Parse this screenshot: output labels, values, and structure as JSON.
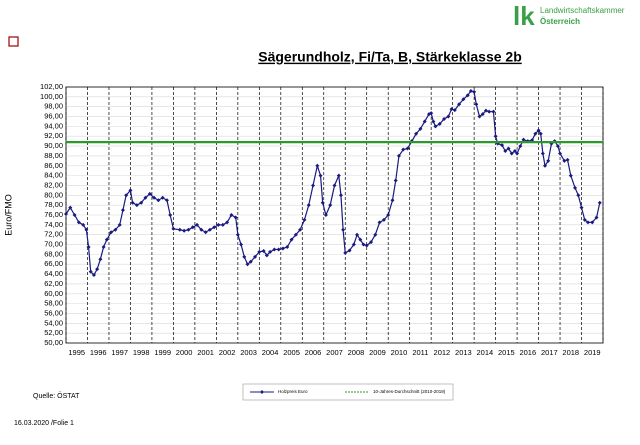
{
  "chart_data": {
    "type": "line",
    "title": "Sägerundholz, Fi/Ta, B, Stärkeklasse 2b",
    "y_label": "Euro/FMO",
    "xlim": [
      1995,
      2020
    ],
    "xticks": [
      {
        "value": 1995.5,
        "label": "1995"
      },
      {
        "value": 1996.5,
        "label": "1996"
      },
      {
        "value": 1997.5,
        "label": "1997"
      },
      {
        "value": 1998.5,
        "label": "1998"
      },
      {
        "value": 1999.5,
        "label": "1999"
      },
      {
        "value": 2000.5,
        "label": "2000"
      },
      {
        "value": 2001.5,
        "label": "2001"
      },
      {
        "value": 2002.5,
        "label": "2002"
      },
      {
        "value": 2003.5,
        "label": "2003"
      },
      {
        "value": 2004.5,
        "label": "2004"
      },
      {
        "value": 2005.5,
        "label": "2005"
      },
      {
        "value": 2006.5,
        "label": "2006"
      },
      {
        "value": 2007.5,
        "label": "2007"
      },
      {
        "value": 2008.5,
        "label": "2008"
      },
      {
        "value": 2009.5,
        "label": "2009"
      },
      {
        "value": 2010.5,
        "label": "2010"
      },
      {
        "value": 2011.5,
        "label": "2011"
      },
      {
        "value": 2012.5,
        "label": "2012"
      },
      {
        "value": 2013.5,
        "label": "2013"
      },
      {
        "value": 2014.5,
        "label": "2014"
      },
      {
        "value": 2015.5,
        "label": "2015"
      },
      {
        "value": 2016.5,
        "label": "2016"
      },
      {
        "value": 2017.5,
        "label": "2017"
      },
      {
        "value": 2018.5,
        "label": "2018"
      },
      {
        "value": 2019.5,
        "label": "2019"
      }
    ],
    "ylim": [
      50,
      102
    ],
    "yticks": [
      {
        "value": 50,
        "label": "50,00"
      },
      {
        "value": 52,
        "label": "52,00"
      },
      {
        "value": 54,
        "label": "54,00"
      },
      {
        "value": 56,
        "label": "56,00"
      },
      {
        "value": 58,
        "label": "58,00"
      },
      {
        "value": 60,
        "label": "60,00"
      },
      {
        "value": 62,
        "label": "62,00"
      },
      {
        "value": 64,
        "label": "64,00"
      },
      {
        "value": 66,
        "label": "66,00"
      },
      {
        "value": 68,
        "label": "68,00"
      },
      {
        "value": 70,
        "label": "70,00"
      },
      {
        "value": 72,
        "label": "72,00"
      },
      {
        "value": 74,
        "label": "74,00"
      },
      {
        "value": 76,
        "label": "76,00"
      },
      {
        "value": 78,
        "label": "78,00"
      },
      {
        "value": 80,
        "label": "80,00"
      },
      {
        "value": 82,
        "label": "82,00"
      },
      {
        "value": 84,
        "label": "84,00"
      },
      {
        "value": 86,
        "label": "86,00"
      },
      {
        "value": 88,
        "label": "88,00"
      },
      {
        "value": 90,
        "label": "90,00"
      },
      {
        "value": 92,
        "label": "92,00"
      },
      {
        "value": 94,
        "label": "94,00"
      },
      {
        "value": 96,
        "label": "96,00"
      },
      {
        "value": 98,
        "label": "98,00"
      },
      {
        "value": 100,
        "label": "100,00"
      },
      {
        "value": 102,
        "label": "102,00"
      }
    ],
    "grid": true,
    "series": [
      {
        "name": "Holzpreis Euro",
        "color": "#1a1a80",
        "x": [
          1995.0,
          1995.2,
          1995.4,
          1995.6,
          1995.8,
          1995.95,
          1996.05,
          1996.15,
          1996.3,
          1996.45,
          1996.6,
          1996.75,
          1996.9,
          1997.1,
          1997.3,
          1997.5,
          1997.65,
          1997.8,
          1998.0,
          1998.1,
          1998.3,
          1998.5,
          1998.7,
          1998.9,
          1999.1,
          1999.3,
          1999.5,
          1999.7,
          1999.85,
          2000.0,
          2000.3,
          2000.5,
          2000.7,
          2000.9,
          2001.1,
          2001.3,
          2001.5,
          2001.7,
          2001.9,
          2002.1,
          2002.3,
          2002.5,
          2002.7,
          2002.9,
          2003.0,
          2003.15,
          2003.3,
          2003.45,
          2003.6,
          2003.8,
          2004.0,
          2004.2,
          2004.35,
          2004.5,
          2004.7,
          2004.9,
          2005.1,
          2005.3,
          2005.5,
          2005.7,
          2005.9,
          2006.1,
          2006.3,
          2006.5,
          2006.7,
          2006.85,
          2006.95,
          2007.1,
          2007.3,
          2007.5,
          2007.7,
          2007.8,
          2007.9,
          2008.0,
          2008.2,
          2008.4,
          2008.55,
          2008.7,
          2008.85,
          2009.0,
          2009.2,
          2009.4,
          2009.6,
          2009.8,
          2010.0,
          2010.2,
          2010.35,
          2010.5,
          2010.7,
          2010.9,
          2011.1,
          2011.3,
          2011.5,
          2011.7,
          2011.9,
          2012.0,
          2012.1,
          2012.2,
          2012.4,
          2012.6,
          2012.8,
          2012.95,
          2013.1,
          2013.3,
          2013.5,
          2013.7,
          2013.85,
          2014.0,
          2014.1,
          2014.25,
          2014.4,
          2014.55,
          2014.7,
          2014.9,
          2015.0,
          2015.1,
          2015.3,
          2015.45,
          2015.6,
          2015.75,
          2015.9,
          2016.0,
          2016.15,
          2016.3,
          2016.5,
          2016.7,
          2016.85,
          2017.0,
          2017.1,
          2017.2,
          2017.3,
          2017.45,
          2017.6,
          2017.75,
          2017.9,
          2018.0,
          2018.2,
          2018.35,
          2018.5,
          2018.7,
          2018.85,
          2019.0,
          2019.15,
          2019.3,
          2019.5,
          2019.7,
          2019.85
        ],
        "values": [
          76.2,
          77.5,
          76,
          74.5,
          74,
          73,
          69.5,
          64.5,
          63.8,
          65,
          67,
          69.5,
          71,
          72.5,
          73,
          74,
          77,
          80,
          81,
          78.5,
          78,
          78.5,
          79.5,
          80.3,
          79.5,
          79,
          79.5,
          79,
          76,
          73.2,
          73,
          72.8,
          73,
          73.5,
          74,
          73,
          72.5,
          73,
          73.5,
          74,
          74,
          74.5,
          76,
          75.5,
          72,
          70,
          67.5,
          66,
          66.5,
          67.5,
          68.5,
          68.7,
          67.8,
          68.5,
          69,
          69,
          69.2,
          69.5,
          71,
          72,
          73,
          75,
          78,
          82,
          86,
          84,
          78.5,
          76,
          78,
          82,
          84,
          80,
          73,
          68.3,
          68.8,
          70,
          72,
          71,
          70,
          69.8,
          70.5,
          72,
          74.5,
          75,
          76,
          79,
          83,
          88,
          89.3,
          89.5,
          91,
          92.5,
          93.5,
          95,
          96.5,
          96.7,
          95,
          94,
          94.5,
          95.5,
          96,
          97.5,
          97.3,
          98.5,
          99.5,
          100.3,
          101.2,
          101,
          98.5,
          96,
          96.5,
          97.2,
          97,
          97,
          92,
          90.5,
          90.2,
          89,
          89.5,
          88.5,
          89,
          88.5,
          90,
          91.3,
          91,
          91.2,
          92.5,
          93.2,
          92.5,
          88.5,
          86,
          87,
          90.5,
          91,
          90,
          88.5,
          87,
          87.2,
          84,
          81.5,
          80,
          77.5,
          75,
          74.5,
          74.5,
          75.5,
          78.5
        ]
      },
      {
        "name": "10-Jahres-Durchschnitt (2010-2019)",
        "color": "#2a9a2a",
        "x": [
          1995,
          2020
        ],
        "values": [
          90.8,
          90.8
        ]
      }
    ]
  },
  "source": "Quelle: ÖSTAT",
  "footer": "16.03.2020 /Folie 1",
  "logo": {
    "mark": "lk",
    "line1": "Landwirtschaftskammer",
    "line2": "Österreich"
  }
}
